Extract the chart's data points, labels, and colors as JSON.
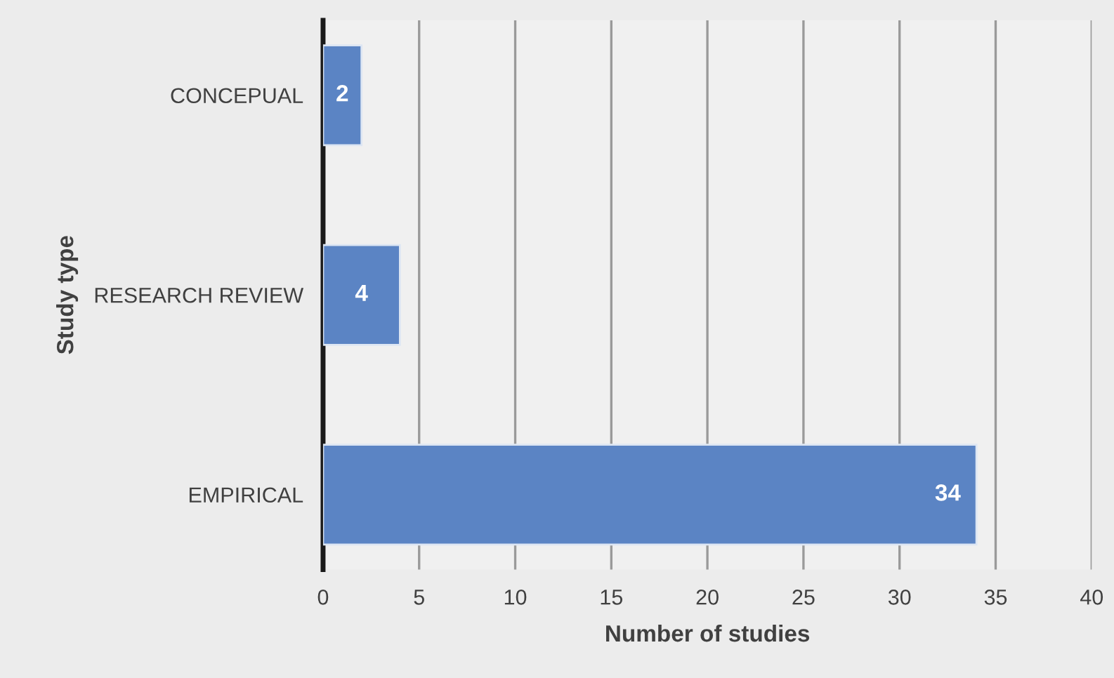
{
  "chart_data": {
    "type": "bar",
    "orientation": "horizontal",
    "xlabel": "Number of studies",
    "ylabel": "Study type",
    "categories": [
      "CONCEPUAL",
      "RESEARCH REVIEW",
      "EMPIRICAL"
    ],
    "values": [
      2,
      4,
      34
    ],
    "color": "#5b84c4",
    "xlim": [
      0,
      40
    ],
    "xticks": [
      0,
      5,
      10,
      15,
      20,
      25,
      30,
      35,
      40
    ],
    "grid": "x",
    "data_labels": true
  }
}
